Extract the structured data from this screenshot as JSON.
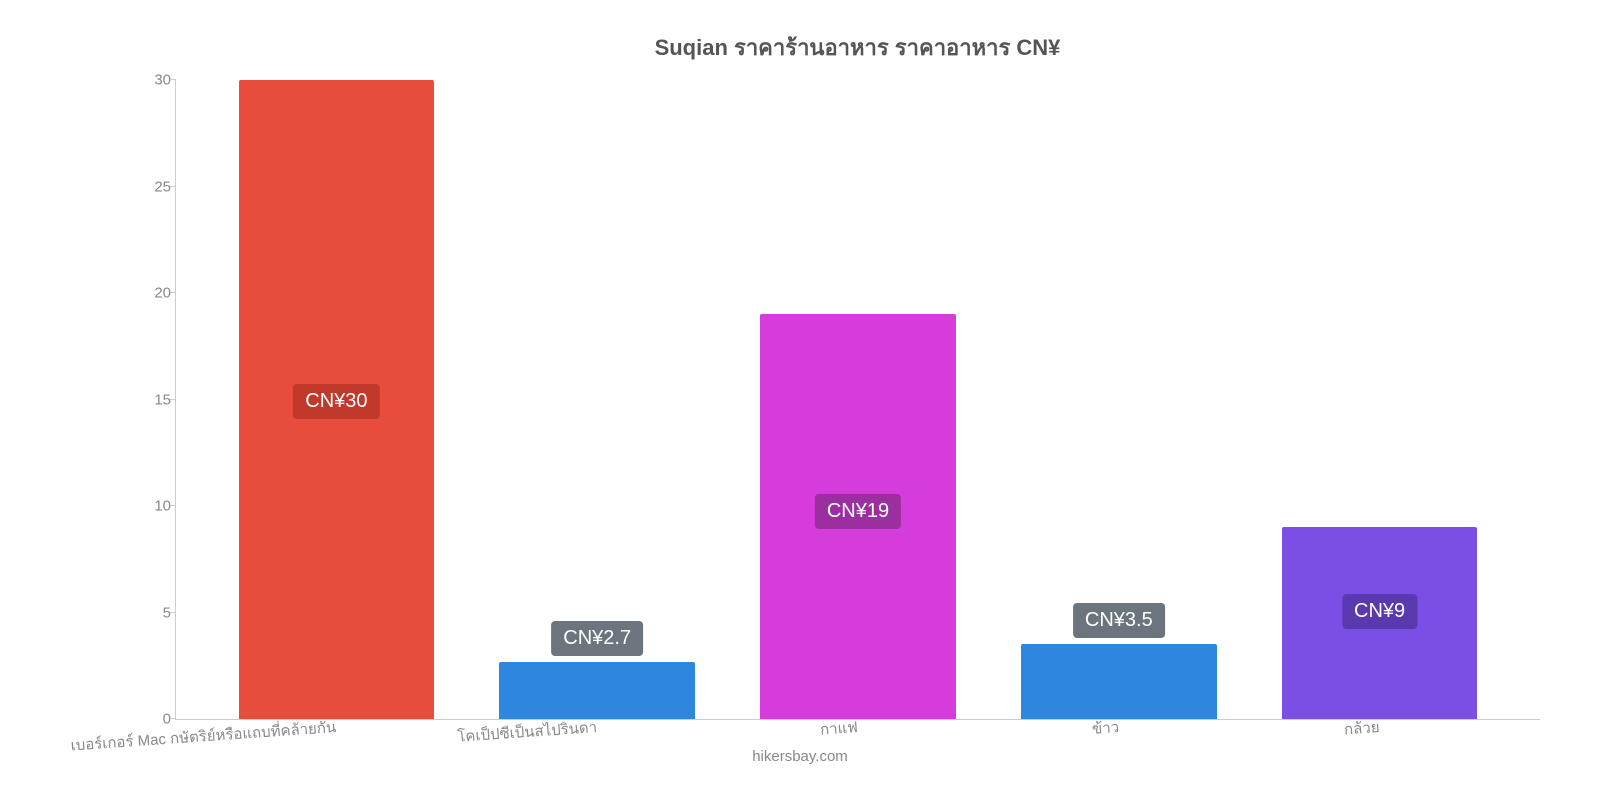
{
  "chart": {
    "type": "bar",
    "title": "Suqian ราคาร้านอาหาร ราคาอาหาร CN¥",
    "title_fontsize": 22,
    "title_color": "#555555",
    "background_color": "#ffffff",
    "ylim": [
      0,
      30
    ],
    "yticks": [
      0,
      5,
      10,
      15,
      20,
      25,
      30
    ],
    "axis_color": "#cccccc",
    "tick_label_color": "#888888",
    "tick_fontsize": 15,
    "bar_width": 0.75,
    "categories": [
      "เบอร์เกอร์ Mac กษัตริย์หรือแถบที่คล้ายกัน",
      "โคเป็ปซีเป็นสไปรินดา",
      "กาแฟ",
      "ข้าว",
      "กล้วย"
    ],
    "values": [
      30,
      2.7,
      19,
      3.5,
      9
    ],
    "value_labels": [
      "CN¥30",
      "CN¥2.7",
      "CN¥19",
      "CN¥3.5",
      "CN¥9"
    ],
    "bar_colors": [
      "#e74c3c",
      "#2e86de",
      "#d63cdb",
      "#2e86de",
      "#7b4ee6"
    ],
    "value_label_bg": [
      "#c0392b",
      "#6c757d",
      "#9b2fa0",
      "#6c757d",
      "#5a38ad"
    ],
    "value_label_positions": [
      "inside",
      "above",
      "inside",
      "above",
      "inside"
    ],
    "value_label_fontsize": 20,
    "attribution": "hikersbay.com",
    "attribution_color": "#888888",
    "attribution_fontsize": 15
  }
}
